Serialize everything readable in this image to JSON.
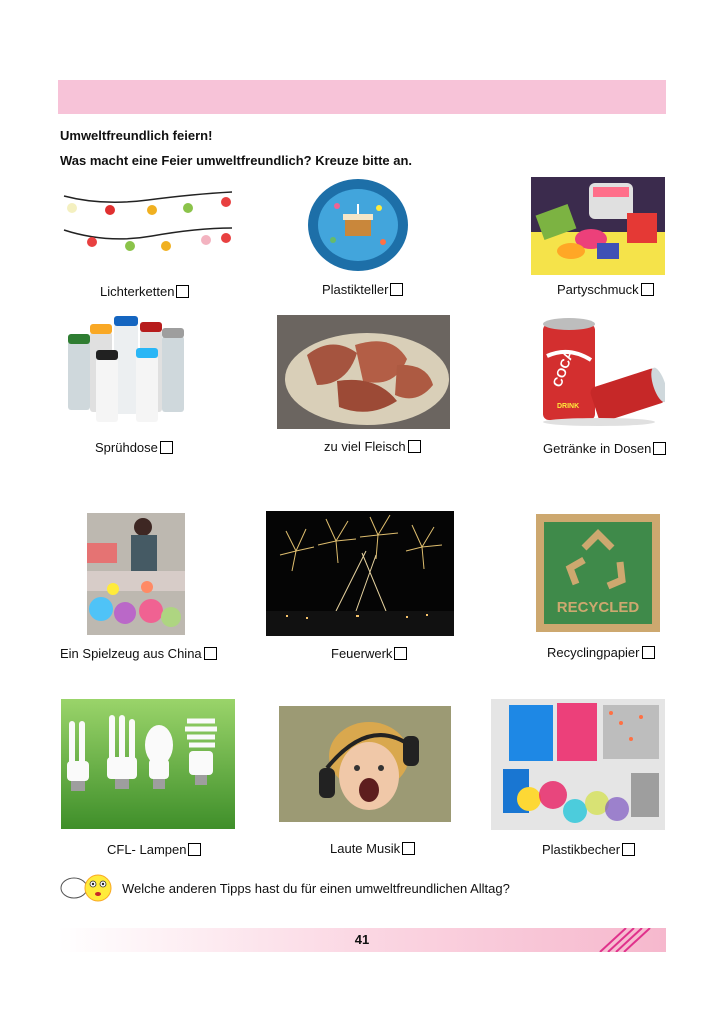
{
  "worksheet": {
    "title": "Umweltfreundlich feiern!",
    "instruction": "Was macht eine Feier umweltfreundlich? Kreuze bitte an.",
    "tip_question": "Welche anderen Tipps hast du für einen umweltfreundlichen Alltag?",
    "page_number": "41"
  },
  "items": [
    {
      "label": "Lichterketten"
    },
    {
      "label": "Plastikteller"
    },
    {
      "label": "Partyschmuck"
    },
    {
      "label": "Sprühdose"
    },
    {
      "label": "zu viel Fleisch"
    },
    {
      "label": "Getränke in Dosen"
    },
    {
      "label": "Ein Spielzeug aus China"
    },
    {
      "label": "Feuerwerk"
    },
    {
      "label": "Recyclingpapier"
    },
    {
      "label": "CFL- Lampen"
    },
    {
      "label": "Laute Musik"
    },
    {
      "label": "Plastikbecher"
    }
  ],
  "image_text": {
    "recycled": "RECYCLED",
    "coca": "COCA",
    "drink": "DRINK"
  },
  "colors": {
    "header_bar": "#f7c3d8",
    "footer_accent": "#e0328c"
  }
}
